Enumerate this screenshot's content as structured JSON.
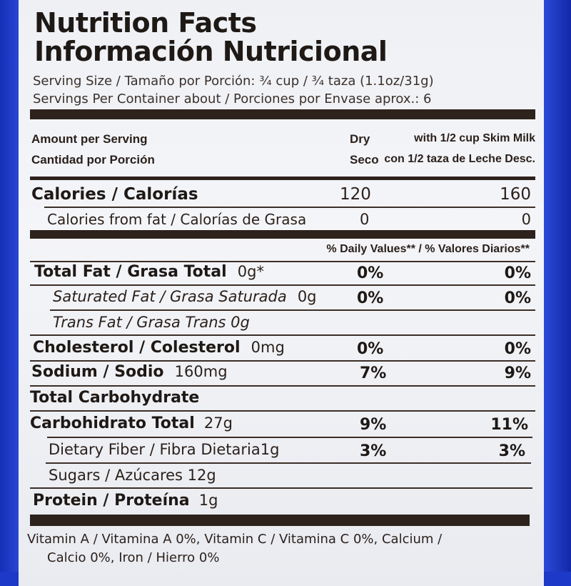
{
  "title_en": "Nutrition Facts",
  "title_es": "Información Nutricional",
  "serving_size": "Serving Size / Tamaño por Porción: ¾ cup / ¾ taza (1.1oz/31g)",
  "servings_per_container": "Servings Per Container about / Porciones por Envase aprox.: 6",
  "header": {
    "amount_en": "Amount per Serving",
    "amount_es": "Cantidad por Porción",
    "dry_en": "Dry",
    "dry_es": "Seco",
    "milk_en": "with 1/2 cup Skim Milk",
    "milk_es": "con 1/2 taza de Leche Desc."
  },
  "calories": {
    "label": "Calories / Calorías",
    "dry": "120",
    "milk": "160"
  },
  "calories_fat": {
    "label": "Calories from fat / Calorías de Grasa",
    "dry": "0",
    "milk": "0"
  },
  "daily_values_header": "% Daily Values** / % Valores Diarios**",
  "nutrients": {
    "total_fat": {
      "label": "Total Fat / Grasa Total",
      "amount": "0g*",
      "dry": "0%",
      "milk": "0%"
    },
    "sat_fat": {
      "label": "Saturated Fat / Grasa Saturada",
      "amount": "0g",
      "dry": "0%",
      "milk": "0%"
    },
    "trans_fat": {
      "label": "Trans Fat / Grasa Trans 0g"
    },
    "cholesterol": {
      "label": "Cholesterol / Colesterol",
      "amount": "0mg",
      "dry": "0%",
      "milk": "0%"
    },
    "sodium": {
      "label": "Sodium / Sodio",
      "amount": "160mg",
      "dry": "7%",
      "milk": "9%"
    },
    "total_carb_en": {
      "label": "Total Carbohydrate"
    },
    "total_carb_es": {
      "label": "Carbohidrato Total",
      "amount": "27g",
      "dry": "9%",
      "milk": "11%"
    },
    "fiber": {
      "label": "Dietary Fiber / Fibra Dietaria",
      "amount": "1g",
      "dry": "3%",
      "milk": "3%"
    },
    "sugars": {
      "label": "Sugars / Azúcares 12g"
    },
    "protein": {
      "label": "Protein / Proteína",
      "amount": "1g"
    }
  },
  "vitamins_line1": "Vitamin A / Vitamina A 0%,  Vitamin C / Vitamina C 0%,  Calcium /",
  "vitamins_line2": "Calcio 0%,  Iron / Hierro 0%",
  "colors": {
    "package_blue": "#1d39c8",
    "ink": "#2a1f1a",
    "panel": "#f0f1f5"
  }
}
